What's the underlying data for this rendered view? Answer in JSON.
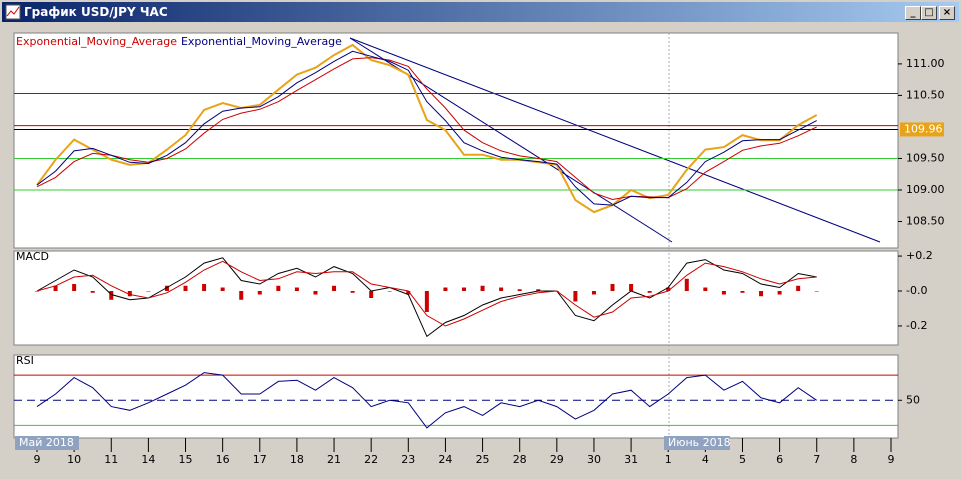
{
  "window": {
    "title": "График USD/JPY ЧАС"
  },
  "chart_data": [
    {
      "type": "line",
      "categories": [
        "9",
        null,
        "10",
        null,
        "11",
        null,
        "14",
        null,
        "15",
        null,
        "16",
        null,
        "17",
        null,
        "18",
        null,
        "21",
        null,
        "22",
        null,
        "23",
        null,
        "24",
        null,
        "25",
        null,
        "28",
        null,
        "29",
        null,
        "30",
        null,
        "31",
        null,
        "1",
        null,
        "4",
        null,
        "5",
        null,
        "6",
        null,
        "7",
        null,
        "8",
        null,
        "9"
      ],
      "period_labels": [
        "Май 2018",
        "Июнь 2018"
      ],
      "series": [
        {
          "color": "#e8a317",
          "values": [
            109.08,
            109.48,
            109.8,
            109.64,
            109.48,
            109.4,
            109.43,
            109.64,
            109.87,
            110.27,
            110.38,
            110.3,
            110.35,
            110.59,
            110.83,
            110.94,
            111.14,
            111.3,
            111.06,
            110.98,
            110.83,
            110.11,
            109.95,
            109.56,
            109.56,
            109.48,
            109.48,
            109.44,
            109.4,
            108.84,
            108.65,
            108.76,
            109.0,
            108.87,
            108.92,
            109.32,
            109.64,
            109.68,
            109.87,
            109.79,
            109.79,
            110.03,
            110.19,
            null,
            null,
            null,
            null
          ]
        },
        {
          "name": "Exponential_Moving_Average",
          "color": "#cc0000",
          "values": [
            109.05,
            109.2,
            109.45,
            109.58,
            109.55,
            109.48,
            109.44,
            109.5,
            109.65,
            109.9,
            110.12,
            110.22,
            110.28,
            110.4,
            110.58,
            110.75,
            110.92,
            111.08,
            111.1,
            111.06,
            110.96,
            110.6,
            110.3,
            109.95,
            109.75,
            109.62,
            109.54,
            109.5,
            109.45,
            109.2,
            108.95,
            108.85,
            108.9,
            108.89,
            108.88,
            109.02,
            109.28,
            109.45,
            109.63,
            109.7,
            109.74,
            109.86,
            110.0,
            null,
            null,
            null,
            null
          ]
        },
        {
          "name": "Exponential_Moving_Average",
          "color": "#000080",
          "values": [
            109.08,
            109.3,
            109.62,
            109.66,
            109.55,
            109.44,
            109.42,
            109.55,
            109.75,
            110.05,
            110.25,
            110.3,
            110.32,
            110.48,
            110.7,
            110.86,
            111.04,
            111.2,
            111.12,
            111.04,
            110.9,
            110.4,
            110.1,
            109.75,
            109.62,
            109.52,
            109.48,
            109.45,
            109.41,
            109.05,
            108.78,
            108.76,
            108.9,
            108.88,
            108.88,
            109.12,
            109.45,
            109.6,
            109.78,
            109.8,
            109.8,
            109.95,
            110.1,
            null,
            null,
            null,
            null
          ]
        }
      ],
      "levels": [
        {
          "value": 110.53,
          "color": "#cc0000"
        },
        {
          "value": 110.02,
          "color": "#cc0000"
        },
        {
          "value": 109.96,
          "color": "#000000"
        },
        {
          "value": 109.5,
          "color": "#33cc33"
        },
        {
          "value": 109.0,
          "color": "#33cc33"
        }
      ],
      "last_price": 109.96,
      "ylim": [
        108.08,
        111.49
      ],
      "yticks": [
        {
          "value": 108.5,
          "label": "108.50"
        },
        {
          "value": 109.0,
          "label": "109.00"
        },
        {
          "value": 109.5,
          "label": "109.50"
        },
        {
          "value": 110.5,
          "label": "110.50"
        },
        {
          "value": 111.0,
          "label": "111.00"
        }
      ]
    },
    {
      "type": "line",
      "title": "MACD",
      "series": [
        {
          "type": "bar",
          "color": "#cc0000",
          "values": [
            0,
            0.03,
            0.04,
            -0.01,
            -0.05,
            -0.03,
            0,
            0.03,
            0.03,
            0.04,
            0.02,
            -0.05,
            -0.02,
            0.03,
            0.02,
            -0.02,
            0.03,
            -0.01,
            -0.04,
            0,
            -0.02,
            -0.12,
            0.02,
            0.02,
            0.03,
            0.02,
            0.01,
            0.01,
            0,
            -0.06,
            -0.02,
            0.04,
            0.04,
            -0.01,
            0.02,
            0.07,
            0.02,
            -0.02,
            -0.01,
            -0.03,
            -0.02,
            0.03,
            0,
            null,
            null,
            null,
            null
          ]
        },
        {
          "color": "#000000",
          "values": [
            0.0,
            0.06,
            0.12,
            0.08,
            -0.02,
            -0.05,
            -0.04,
            0.02,
            0.08,
            0.16,
            0.19,
            0.06,
            0.04,
            0.1,
            0.13,
            0.08,
            0.14,
            0.1,
            0.0,
            0.02,
            -0.02,
            -0.26,
            -0.18,
            -0.14,
            -0.08,
            -0.04,
            -0.02,
            0.0,
            0.0,
            -0.14,
            -0.17,
            -0.08,
            0.0,
            -0.04,
            0.02,
            0.16,
            0.18,
            0.12,
            0.1,
            0.04,
            0.02,
            0.1,
            0.08,
            null,
            null,
            null,
            null
          ]
        },
        {
          "color": "#cc0000",
          "values": [
            0.0,
            0.03,
            0.08,
            0.09,
            0.03,
            -0.02,
            -0.04,
            -0.01,
            0.05,
            0.12,
            0.17,
            0.11,
            0.06,
            0.07,
            0.11,
            0.1,
            0.11,
            0.11,
            0.04,
            0.02,
            0.0,
            -0.14,
            -0.2,
            -0.16,
            -0.11,
            -0.06,
            -0.03,
            -0.01,
            0.0,
            -0.08,
            -0.15,
            -0.12,
            -0.04,
            -0.03,
            0.0,
            0.09,
            0.16,
            0.14,
            0.11,
            0.07,
            0.04,
            0.07,
            0.08,
            null,
            null,
            null,
            null
          ]
        }
      ],
      "ylim": [
        -0.309,
        0.229
      ],
      "yticks": [
        {
          "value": 0.2,
          "label": "+0.2"
        },
        {
          "value": 0,
          "label": "-0.0"
        },
        {
          "value": -0.2,
          "label": "-0.2"
        }
      ]
    },
    {
      "type": "line",
      "title": "RSI",
      "series": [
        {
          "color": "#000080",
          "values": [
            45,
            55,
            68,
            60,
            45,
            42,
            48,
            55,
            62,
            72,
            70,
            55,
            55,
            65,
            66,
            58,
            68,
            60,
            45,
            50,
            48,
            28,
            40,
            45,
            38,
            48,
            45,
            50,
            45,
            35,
            42,
            55,
            58,
            45,
            55,
            68,
            70,
            58,
            65,
            52,
            48,
            60,
            50,
            null,
            null,
            null,
            null
          ]
        }
      ],
      "levels": [
        {
          "value": 70,
          "color": "#cc0000"
        },
        {
          "value": 50,
          "color": "#000080",
          "dashed": true
        },
        {
          "value": 30,
          "color": "#33cc33"
        }
      ],
      "ylim": [
        20,
        86
      ],
      "yticks": [
        50
      ]
    }
  ]
}
